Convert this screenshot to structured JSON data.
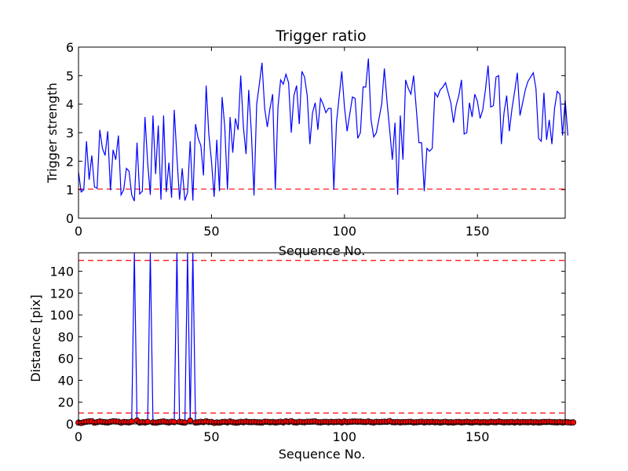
{
  "chart_data": [
    {
      "type": "line",
      "title": "Trigger ratio",
      "xlabel": "Sequence No.",
      "ylabel": "Trigger strength",
      "xlim": [
        0,
        183
      ],
      "ylim": [
        0,
        6
      ],
      "xticks": [
        "0",
        "50",
        "100",
        "150"
      ],
      "yticks": [
        "0",
        "1",
        "2",
        "3",
        "4",
        "5",
        "6"
      ],
      "grid": false,
      "series": [
        {
          "color": "#0000ff",
          "values": [
            1.63,
            0.92,
            1.0,
            2.7,
            1.35,
            2.2,
            1.1,
            1.05,
            3.1,
            2.45,
            2.2,
            3.05,
            0.98,
            2.4,
            2.05,
            2.9,
            0.82,
            1.0,
            1.75,
            1.65,
            0.82,
            0.6,
            2.65,
            0.85,
            0.95,
            3.55,
            1.95,
            0.82,
            3.6,
            1.55,
            3.25,
            0.65,
            3.6,
            0.92,
            1.95,
            0.72,
            3.8,
            2.15,
            0.65,
            1.75,
            0.62,
            0.9,
            2.7,
            0.62,
            3.3,
            2.8,
            2.55,
            1.5,
            4.65,
            2.95,
            2.0,
            0.75,
            2.75,
            0.95,
            4.25,
            3.2,
            1.0,
            3.55,
            2.3,
            3.5,
            3.1,
            5.0,
            3.2,
            2.25,
            4.5,
            3.0,
            0.8,
            4.0,
            4.7,
            5.45,
            3.85,
            3.2,
            3.85,
            4.35,
            1.0,
            3.9,
            4.85,
            4.7,
            5.05,
            4.75,
            3.0,
            4.3,
            4.65,
            3.3,
            5.15,
            4.95,
            4.3,
            2.6,
            3.7,
            4.05,
            3.1,
            4.2,
            4.0,
            3.7,
            3.85,
            3.85,
            1.0,
            3.35,
            4.25,
            5.15,
            3.9,
            3.05,
            3.65,
            4.25,
            4.2,
            2.8,
            3.0,
            4.6,
            4.6,
            5.6,
            3.45,
            2.85,
            3.0,
            3.5,
            4.0,
            5.25,
            4.1,
            3.1,
            2.05,
            3.35,
            0.82,
            3.6,
            2.05,
            4.85,
            4.55,
            4.35,
            5.0,
            3.85,
            2.65,
            2.65,
            0.95,
            2.45,
            2.35,
            2.45,
            4.4,
            4.25,
            4.5,
            4.6,
            4.75,
            4.4,
            4.05,
            3.35,
            3.95,
            4.3,
            4.85,
            2.95,
            3.0,
            4.05,
            3.55,
            4.35,
            4.1,
            3.5,
            3.8,
            4.5,
            5.35,
            3.9,
            3.95,
            4.95,
            5.0,
            2.6,
            3.7,
            4.3,
            3.05,
            3.85,
            4.45,
            5.1,
            3.6,
            4.05,
            4.5,
            4.8,
            4.95,
            5.1,
            4.55,
            2.8,
            2.7,
            4.4,
            2.75,
            3.45,
            2.6,
            3.85,
            4.45,
            4.35,
            2.9,
            4.15,
            2.9
          ]
        }
      ],
      "hlines": [
        {
          "y": 1.02,
          "color": "#ff0000",
          "style": "dashed"
        }
      ]
    },
    {
      "type": "line",
      "title": "",
      "xlabel": "Sequence No.",
      "ylabel": "Distance [pix]",
      "xlim": [
        0,
        183
      ],
      "ylim": [
        0,
        157
      ],
      "xticks": [
        "0",
        "50",
        "100",
        "150"
      ],
      "yticks": [
        "0",
        "20",
        "40",
        "60",
        "80",
        "100",
        "120",
        "140"
      ],
      "grid": false,
      "series": [
        {
          "color": "#0000ff",
          "marker_color": "#ff0000",
          "values": [
            1.2,
            0.8,
            1.5,
            2.0,
            2.3,
            2.5,
            1.1,
            1.6,
            2.2,
            1.8,
            1.5,
            1.3,
            1.9,
            2.4,
            2.2,
            2.0,
            1.1,
            1.8,
            1.6,
            1.4,
            2.1,
            157,
            3.1,
            1.2,
            1.6,
            1.3,
            1.9,
            157,
            1.4,
            1.1,
            1.5,
            1.9,
            2.2,
            1.7,
            1.3,
            2.0,
            1.6,
            157,
            1.9,
            1.4,
            1.2,
            157,
            3.0,
            157,
            1.2,
            1.5,
            1.9,
            1.6,
            2.4,
            1.7,
            1.8,
            0.9,
            1.3,
            1.1,
            1.7,
            1.9,
            1.4,
            2.2,
            1.6,
            1.1,
            1.3,
            1.9,
            1.5,
            2.1,
            1.7,
            1.6,
            1.8,
            1.5,
            1.4,
            1.2,
            2.0,
            1.9,
            1.5,
            1.8,
            1.3,
            1.6,
            2.0,
            1.4,
            2.3,
            1.8,
            2.5,
            1.5,
            1.3,
            1.9,
            1.7,
            1.5,
            2.0,
            1.9,
            2.1,
            2.2,
            1.6,
            1.4,
            1.8,
            1.9,
            1.5,
            1.9,
            1.6,
            1.8,
            2.0,
            1.4,
            2.3,
            1.6,
            1.9,
            2.1,
            2.2,
            2.0,
            2.1,
            1.8,
            1.7,
            2.2,
            1.6,
            1.3,
            1.9,
            1.7,
            1.8,
            2.0,
            1.9,
            2.6,
            1.6,
            1.5,
            1.8,
            1.4,
            1.7,
            1.6,
            1.8,
            1.9,
            1.3,
            1.5,
            1.7,
            2.0,
            1.4,
            1.8,
            1.6,
            1.9,
            1.5,
            1.7,
            1.3,
            1.6,
            1.9,
            1.4,
            1.5,
            1.2,
            1.7,
            1.8,
            1.4,
            1.6,
            1.9,
            1.5,
            1.3,
            1.7,
            1.8,
            1.4,
            1.6,
            1.5,
            1.3,
            1.9,
            1.6,
            1.5,
            2.1,
            1.7,
            1.4,
            1.6,
            1.5,
            1.8,
            1.3,
            1.9,
            1.4,
            1.7,
            1.6,
            1.5,
            1.8,
            1.4,
            1.6,
            1.3,
            1.5,
            1.8,
            1.7,
            1.9,
            1.6,
            1.5,
            1.4,
            1.7,
            1.3,
            1.6,
            1.5,
            1.2,
            1.4
          ]
        }
      ],
      "hlines": [
        {
          "y": 150,
          "color": "#ff0000",
          "style": "dashed"
        },
        {
          "y": 10,
          "color": "#ff0000",
          "style": "dashed"
        }
      ]
    }
  ]
}
